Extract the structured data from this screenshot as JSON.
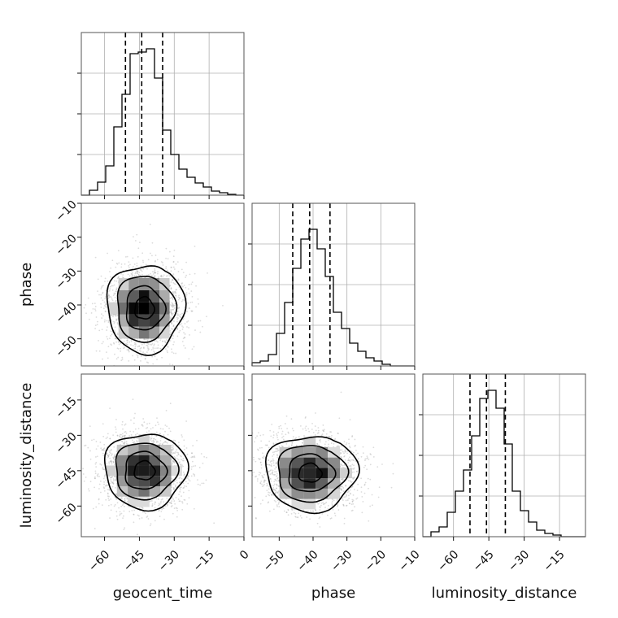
{
  "chart_data": {
    "type": "corner",
    "parameters": [
      "geocent_time",
      "phase",
      "luminosity_distance"
    ],
    "axis_titles": {
      "x": [
        "geocent_time",
        "phase",
        "luminosity_distance"
      ],
      "y": [
        "",
        "phase",
        "luminosity_distance"
      ]
    },
    "ranges": {
      "geocent_time": [
        -70,
        0
      ],
      "phase": [
        -58,
        -10
      ],
      "luminosity_distance": [
        -73,
        -4
      ]
    },
    "ticks": {
      "geocent_time": [
        -60,
        -45,
        -30,
        -15,
        0
      ],
      "phase": [
        -50,
        -40,
        -30,
        -20,
        -10
      ],
      "luminosity_distance": [
        -60,
        -45,
        -30,
        -15
      ]
    },
    "tick_labels": {
      "geocent_time": [
        "−60",
        "−45",
        "−30",
        "−15",
        "0"
      ],
      "phase": [
        "−50",
        "−40",
        "−30",
        "−20",
        "−10"
      ],
      "luminosity_distance": [
        "−60",
        "−45",
        "−30",
        "−15"
      ]
    },
    "quantiles": {
      "geocent_time": [
        -51,
        -44,
        -35
      ],
      "phase": [
        -46,
        -41,
        -35
      ],
      "luminosity_distance": [
        -53,
        -46,
        -38
      ]
    },
    "histograms": {
      "geocent_time": {
        "edges": [
          -70,
          -66.5,
          -63,
          -59.5,
          -56,
          -52.5,
          -49,
          -45.5,
          -42,
          -38.5,
          -35,
          -31.5,
          -28,
          -24.5,
          -21,
          -17.5,
          -14,
          -10.5,
          -7,
          -3.5,
          0
        ],
        "counts": [
          0,
          0.03,
          0.08,
          0.18,
          0.42,
          0.62,
          0.87,
          0.88,
          0.9,
          0.72,
          0.4,
          0.25,
          0.16,
          0.11,
          0.075,
          0.05,
          0.025,
          0.015,
          0.005,
          0
        ]
      },
      "phase": {
        "edges": [
          -58,
          -55.6,
          -53.2,
          -50.8,
          -48.4,
          -46,
          -43.6,
          -41.2,
          -38.8,
          -36.4,
          -34,
          -31.6,
          -29.2,
          -26.8,
          -24.4,
          -22,
          -19.6,
          -17.2,
          -14.8,
          -12.4,
          -10
        ],
        "counts": [
          0.02,
          0.03,
          0.07,
          0.2,
          0.39,
          0.6,
          0.78,
          0.84,
          0.72,
          0.55,
          0.33,
          0.23,
          0.14,
          0.09,
          0.05,
          0.03,
          0.01,
          0,
          0,
          0
        ]
      },
      "luminosity_distance": {
        "edges": [
          -73,
          -69.55,
          -66.1,
          -62.65,
          -59.2,
          -55.75,
          -52.3,
          -48.85,
          -45.4,
          -41.95,
          -38.5,
          -35.05,
          -31.6,
          -28.15,
          -24.7,
          -21.25,
          -17.8,
          -14.35,
          -10.9,
          -7.45,
          -4
        ],
        "counts": [
          0,
          0.03,
          0.06,
          0.15,
          0.28,
          0.41,
          0.62,
          0.85,
          0.9,
          0.79,
          0.57,
          0.28,
          0.16,
          0.09,
          0.04,
          0.02,
          0.01,
          0,
          0,
          0
        ]
      }
    },
    "pairs": [
      {
        "x": "geocent_time",
        "y": "phase",
        "center": [
          -43,
          -41
        ],
        "sigma": [
          8,
          6.5
        ]
      },
      {
        "x": "geocent_time",
        "y": "luminosity_distance",
        "center": [
          -43,
          -45
        ],
        "sigma": [
          8.5,
          8
        ]
      },
      {
        "x": "phase",
        "y": "luminosity_distance",
        "center": [
          -41,
          -46
        ],
        "sigma": [
          6.5,
          8
        ]
      }
    ],
    "contour_levels_sigma": [
      0.5,
      1,
      1.5,
      2
    ],
    "grid": true,
    "colors": {
      "line": "#000000",
      "grid": "#b0b0b0",
      "scatter": "#9a9a9a",
      "frame": "#555555"
    }
  }
}
